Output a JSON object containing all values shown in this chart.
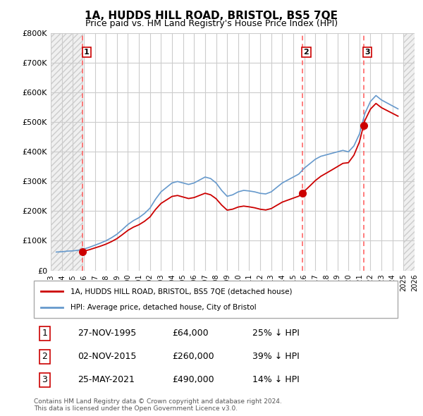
{
  "title": "1A, HUDDS HILL ROAD, BRISTOL, BS5 7QE",
  "subtitle": "Price paid vs. HM Land Registry's House Price Index (HPI)",
  "hpi_line_color": "#6699cc",
  "price_line_color": "#cc0000",
  "dashed_line_color": "#ff6666",
  "background_color": "#ffffff",
  "hatch_color": "#dddddd",
  "grid_color": "#cccccc",
  "sales": [
    {
      "date_num": 1995.9,
      "price": 64000,
      "label": "1"
    },
    {
      "date_num": 2015.83,
      "price": 260000,
      "label": "2"
    },
    {
      "date_num": 2021.38,
      "price": 490000,
      "label": "3"
    }
  ],
  "ylim": [
    0,
    800000
  ],
  "xlim": [
    1993,
    2026
  ],
  "yticks": [
    0,
    100000,
    200000,
    300000,
    400000,
    500000,
    600000,
    700000,
    800000
  ],
  "ytick_labels": [
    "£0",
    "£100K",
    "£200K",
    "£300K",
    "£400K",
    "£500K",
    "£600K",
    "£700K",
    "£800K"
  ],
  "xtick_start": 1993,
  "xtick_end": 2026,
  "legend_entries": [
    "1A, HUDDS HILL ROAD, BRISTOL, BS5 7QE (detached house)",
    "HPI: Average price, detached house, City of Bristol"
  ],
  "table_rows": [
    [
      "1",
      "27-NOV-1995",
      "£64,000",
      "25% ↓ HPI"
    ],
    [
      "2",
      "02-NOV-2015",
      "£260,000",
      "39% ↓ HPI"
    ],
    [
      "3",
      "25-MAY-2021",
      "£490,000",
      "14% ↓ HPI"
    ]
  ],
  "footnote": "Contains HM Land Registry data © Crown copyright and database right 2024.\nThis data is licensed under the Open Government Licence v3.0.",
  "hpi_data_x": [
    1993.5,
    1994.0,
    1994.5,
    1995.0,
    1995.5,
    1996.0,
    1996.5,
    1997.0,
    1997.5,
    1998.0,
    1998.5,
    1999.0,
    1999.5,
    2000.0,
    2000.5,
    2001.0,
    2001.5,
    2002.0,
    2002.5,
    2003.0,
    2003.5,
    2004.0,
    2004.5,
    2005.0,
    2005.5,
    2006.0,
    2006.5,
    2007.0,
    2007.5,
    2008.0,
    2008.5,
    2009.0,
    2009.5,
    2010.0,
    2010.5,
    2011.0,
    2011.5,
    2012.0,
    2012.5,
    2013.0,
    2013.5,
    2014.0,
    2014.5,
    2015.0,
    2015.5,
    2016.0,
    2016.5,
    2017.0,
    2017.5,
    2018.0,
    2018.5,
    2019.0,
    2019.5,
    2020.0,
    2020.5,
    2021.0,
    2021.5,
    2022.0,
    2022.5,
    2023.0,
    2023.5,
    2024.0,
    2024.5
  ],
  "hpi_data_y": [
    62000,
    63000,
    65000,
    66000,
    68000,
    72000,
    78000,
    85000,
    92000,
    100000,
    110000,
    122000,
    138000,
    155000,
    168000,
    178000,
    192000,
    210000,
    240000,
    265000,
    280000,
    295000,
    300000,
    295000,
    290000,
    295000,
    305000,
    315000,
    310000,
    295000,
    270000,
    250000,
    255000,
    265000,
    270000,
    268000,
    265000,
    260000,
    258000,
    265000,
    280000,
    295000,
    305000,
    315000,
    325000,
    345000,
    360000,
    375000,
    385000,
    390000,
    395000,
    400000,
    405000,
    400000,
    420000,
    460000,
    530000,
    570000,
    590000,
    575000,
    565000,
    555000,
    545000
  ]
}
